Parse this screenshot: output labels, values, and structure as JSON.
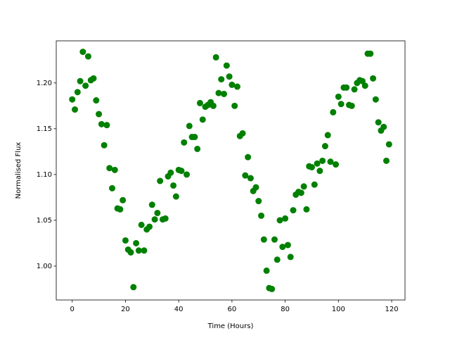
{
  "chart_data": {
    "type": "scatter",
    "xlabel": "Time (Hours)",
    "ylabel": "Normalised Flux",
    "x": [
      0,
      1,
      2,
      3,
      4,
      5,
      6,
      7,
      8,
      9,
      10,
      11,
      12,
      13,
      14,
      15,
      16,
      17,
      18,
      19,
      20,
      21,
      22,
      23,
      24,
      25,
      26,
      27,
      28,
      29,
      30,
      31,
      32,
      33,
      34,
      35,
      36,
      37,
      38,
      39,
      40,
      41,
      42,
      43,
      44,
      45,
      46,
      47,
      48,
      49,
      50,
      51,
      52,
      53,
      54,
      55,
      56,
      57,
      58,
      59,
      60,
      61,
      62,
      63,
      64,
      65,
      66,
      67,
      68,
      69,
      70,
      71,
      72,
      73,
      74,
      75,
      76,
      77,
      78,
      79,
      80,
      81,
      82,
      83,
      84,
      85,
      86,
      87,
      88,
      89,
      90,
      91,
      92,
      93,
      94,
      95,
      96,
      97,
      98,
      99,
      100,
      101,
      102,
      103,
      104,
      105,
      106,
      107,
      108,
      109,
      110,
      111,
      112,
      113,
      114,
      115,
      116,
      117,
      118,
      119
    ],
    "values": [
      1.182,
      1.171,
      1.19,
      1.202,
      1.234,
      1.197,
      1.229,
      1.203,
      1.205,
      1.181,
      1.166,
      1.155,
      1.132,
      1.154,
      1.107,
      1.085,
      1.105,
      1.063,
      1.062,
      1.072,
      1.028,
      1.018,
      1.015,
      0.977,
      1.025,
      1.017,
      1.045,
      1.017,
      1.04,
      1.043,
      1.067,
      1.051,
      1.058,
      1.093,
      1.051,
      1.052,
      1.098,
      1.102,
      1.088,
      1.076,
      1.105,
      1.104,
      1.135,
      1.1,
      1.153,
      1.141,
      1.141,
      1.128,
      1.178,
      1.16,
      1.174,
      1.176,
      1.179,
      1.175,
      1.228,
      1.189,
      1.204,
      1.188,
      1.219,
      1.207,
      1.198,
      1.175,
      1.196,
      1.142,
      1.145,
      1.099,
      1.119,
      1.096,
      1.082,
      1.086,
      1.071,
      1.055,
      1.029,
      0.995,
      0.976,
      0.975,
      1.029,
      1.007,
      1.05,
      1.021,
      1.052,
      1.023,
      1.01,
      1.061,
      1.078,
      1.081,
      1.08,
      1.087,
      1.062,
      1.109,
      1.108,
      1.089,
      1.112,
      1.104,
      1.115,
      1.131,
      1.143,
      1.114,
      1.168,
      1.111,
      1.185,
      1.177,
      1.195,
      1.195,
      1.176,
      1.175,
      1.193,
      1.2,
      1.203,
      1.202,
      1.197,
      1.232,
      1.232,
      1.205,
      1.182,
      1.157,
      1.148,
      1.152,
      1.115,
      1.133
    ],
    "color": "#008000",
    "xlim": [
      -6,
      125
    ],
    "ylim": [
      0.963,
      1.246
    ],
    "xticks": [
      0,
      20,
      40,
      60,
      80,
      100,
      120
    ],
    "yticks": [
      {
        "value": 1.0,
        "label": "1.00"
      },
      1.05,
      {
        "value": 1.1,
        "label": "1.10"
      },
      1.15,
      {
        "value": 1.2,
        "label": "1.20"
      }
    ]
  }
}
